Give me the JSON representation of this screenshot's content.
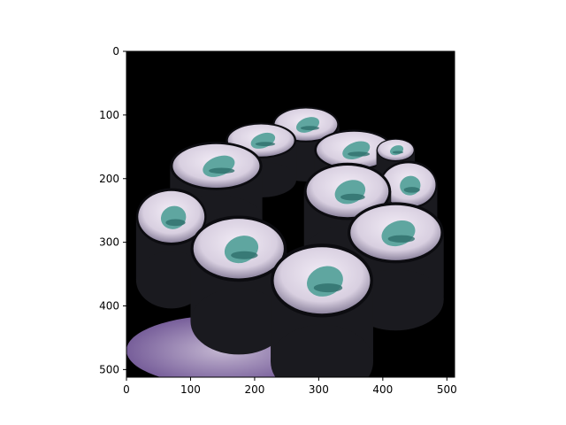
{
  "chart_data": {
    "type": "image",
    "title": "",
    "xlabel": "",
    "ylabel": "",
    "xlim": [
      0,
      512
    ],
    "ylim": [
      512,
      0
    ],
    "x_ticks": [
      0,
      100,
      200,
      300,
      400,
      500
    ],
    "y_ticks": [
      0,
      100,
      200,
      300,
      400,
      500
    ],
    "y_inverted": true,
    "grid": false,
    "image_content": "maki-sushi-rolls-cucumber",
    "pieces": [
      {
        "x": 280,
        "y": 115,
        "rx": 52,
        "ry": 28
      },
      {
        "x": 210,
        "y": 140,
        "rx": 55,
        "ry": 28
      },
      {
        "x": 355,
        "y": 155,
        "rx": 62,
        "ry": 32
      },
      {
        "x": 140,
        "y": 180,
        "rx": 72,
        "ry": 38
      },
      {
        "x": 420,
        "y": 155,
        "rx": 30,
        "ry": 18
      },
      {
        "x": 440,
        "y": 210,
        "rx": 45,
        "ry": 38
      },
      {
        "x": 345,
        "y": 220,
        "rx": 68,
        "ry": 45
      },
      {
        "x": 70,
        "y": 260,
        "rx": 55,
        "ry": 45
      },
      {
        "x": 175,
        "y": 310,
        "rx": 75,
        "ry": 52
      },
      {
        "x": 420,
        "y": 285,
        "rx": 75,
        "ry": 48
      },
      {
        "x": 305,
        "y": 360,
        "rx": 80,
        "ry": 58
      }
    ],
    "colors": {
      "background": "#000000",
      "nori": "#1a1a1f",
      "rice": "#d8cfe0",
      "rice_shadow": "#a49bb0",
      "cucumber": "#5fa6a0",
      "cucumber_dark": "#2e6f6c",
      "plate": "#b59bd6"
    }
  }
}
